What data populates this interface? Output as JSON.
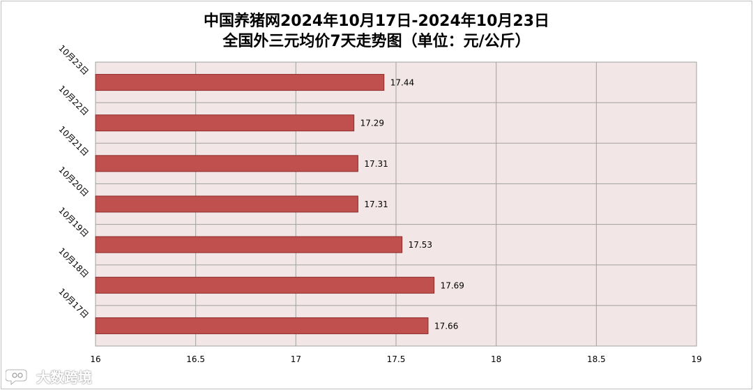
{
  "title": {
    "line1": "中国养猪网2024年10月17日-2024年10月23日",
    "line2": "全国外三元均价7天走势图（单位：元/公斤）"
  },
  "watermark": {
    "text": "大数跨境",
    "logo_icon": "speech-bubble-logo-icon"
  },
  "colors": {
    "bar_fill": "#c0504d",
    "bar_stroke": "#8c2b29",
    "plot_bg": "#f2e6e6",
    "grid": "#a0a0a0"
  },
  "chart_data": {
    "type": "bar",
    "orientation": "horizontal",
    "categories": [
      "10月23日",
      "10月22日",
      "10月21日",
      "10月20日",
      "10月19日",
      "10月18日",
      "10月17日"
    ],
    "values": [
      17.44,
      17.29,
      17.31,
      17.31,
      17.53,
      17.69,
      17.66
    ],
    "value_labels": [
      "17.44",
      "17.29",
      "17.31",
      "17.31",
      "17.53",
      "17.69",
      "17.66"
    ],
    "xlim": [
      16,
      19
    ],
    "x_ticks": [
      16,
      16.5,
      17,
      17.5,
      18,
      18.5,
      19
    ],
    "x_tick_labels": [
      "16",
      "16.5",
      "17",
      "17.5",
      "18",
      "18.5",
      "19"
    ],
    "grid": true,
    "legend": "none"
  }
}
